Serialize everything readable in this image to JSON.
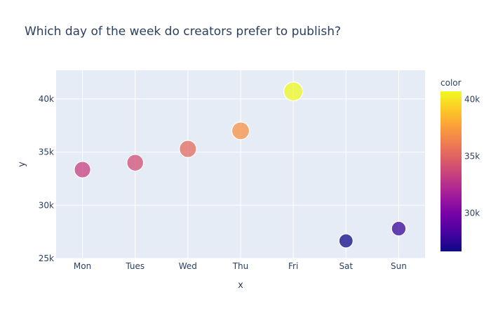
{
  "chart_data": {
    "type": "scatter",
    "title": "Which day of the week do creators prefer to publish?",
    "xlabel": "x",
    "ylabel": "y",
    "categories": [
      "Mon",
      "Tues",
      "Wed",
      "Thu",
      "Fri",
      "Sat",
      "Sun"
    ],
    "values": [
      33350,
      34000,
      35300,
      37000,
      40700,
      26650,
      27800
    ],
    "ylim": [
      25000,
      42700
    ],
    "yticks": [
      25000,
      30000,
      35000,
      40000
    ],
    "ytick_labels": [
      "25k",
      "30k",
      "35k",
      "40k"
    ],
    "grid": true,
    "colorbar": {
      "title": "color",
      "range": [
        26650,
        40700
      ],
      "ticks": [
        30000,
        35000,
        40000
      ],
      "tick_labels": [
        "30k",
        "35k",
        "40k"
      ],
      "colorscale": [
        "#0d0887",
        "#46039f",
        "#7201a8",
        "#9c179e",
        "#bd3786",
        "#d8576b",
        "#ed7953",
        "#fb9f3a",
        "#fdca26",
        "#f0f921"
      ]
    },
    "colors": {
      "plot_bg": "#e5ecf6",
      "grid": "#ffffff",
      "text": "#2a3f5f",
      "marker_outline": "#ffffff"
    }
  }
}
